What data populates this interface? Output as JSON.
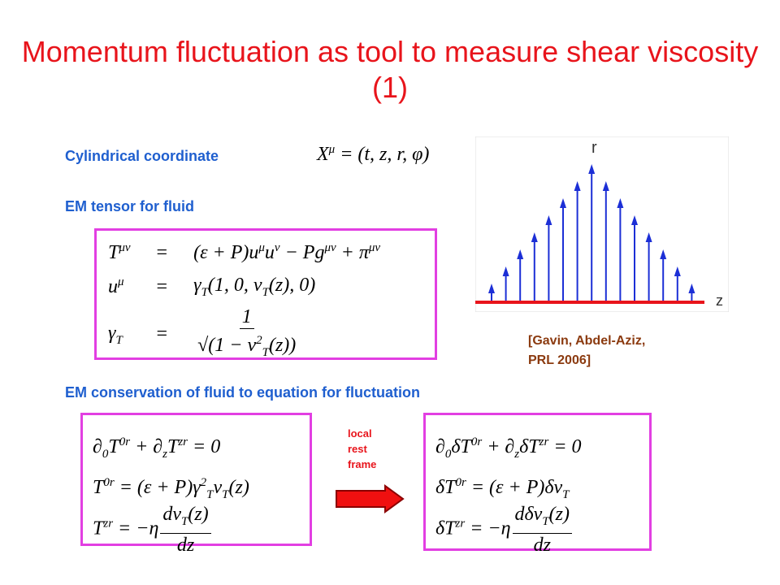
{
  "title": "Momentum fluctuation as tool to measure shear viscosity (1)",
  "labels": {
    "coordinate": "Cylindrical coordinate",
    "tensor": "EM tensor for fluid",
    "conservation": "EM conservation of fluid to equation for fluctuation"
  },
  "coordinate_eq": [
    "X",
    {
      "sup": "μ"
    },
    " = (t, z, r, φ)"
  ],
  "tensor_rows": [
    {
      "lhs": [
        "T",
        {
          "sup": "μν"
        }
      ],
      "op": "=",
      "rhs": [
        "(ε + P)u",
        {
          "sup": "μ"
        },
        "u",
        {
          "sup": "ν"
        },
        " − Pg",
        {
          "sup": "μν"
        },
        " + π",
        {
          "sup": "μν"
        }
      ]
    },
    {
      "lhs": [
        "u",
        {
          "sup": "μ"
        }
      ],
      "op": "=",
      "rhs": [
        "γ",
        {
          "sub": "T"
        },
        "(1, 0, v",
        {
          "sub": "T"
        },
        "(z), 0)"
      ]
    },
    {
      "lhs": [
        "γ",
        {
          "sub": "T"
        }
      ],
      "op": "=",
      "rhs": [
        {
          "frac": {
            "num": [
              "1"
            ],
            "den": [
              "√(1 − v",
              {
                "sup": "2"
              },
              {
                "sub": "T"
              },
              "(z))"
            ]
          }
        }
      ]
    }
  ],
  "figure": {
    "y_label": "r",
    "x_label": "z"
  },
  "citation": [
    "[Gavin, Abdel-Aziz,",
    "PRL 2006]"
  ],
  "left_eqs": [
    [
      "∂",
      {
        "sub": "0"
      },
      "T",
      {
        "sup": "0r"
      },
      " + ∂",
      {
        "sub": "z"
      },
      "T",
      {
        "sup": "zr"
      },
      " = 0"
    ],
    [
      "T",
      {
        "sup": "0r"
      },
      " = (ε + P)γ",
      {
        "sup": "2"
      },
      {
        "sub": "T"
      },
      "v",
      {
        "sub": "T"
      },
      "(z)"
    ],
    [
      "T",
      {
        "sup": "zr"
      },
      " = −η",
      {
        "frac": {
          "num": [
            "dv",
            {
              "sub": "T"
            },
            "(z)"
          ],
          "den": [
            "dz"
          ]
        }
      }
    ]
  ],
  "arrow_label": [
    "local",
    "rest",
    "frame"
  ],
  "right_eqs": [
    [
      "∂",
      {
        "sub": "0"
      },
      "δT",
      {
        "sup": "0r"
      },
      " + ∂",
      {
        "sub": "z"
      },
      "δT",
      {
        "sup": "zr"
      },
      " = 0"
    ],
    [
      "δT",
      {
        "sup": "0r"
      },
      " = (ε + P)δv",
      {
        "sub": "T"
      }
    ],
    [
      "δT",
      {
        "sup": "zr"
      },
      " = −η",
      {
        "frac": {
          "num": [
            "dδv",
            {
              "sub": "T"
            },
            "(z)"
          ],
          "den": [
            "dz"
          ]
        }
      }
    ]
  ]
}
